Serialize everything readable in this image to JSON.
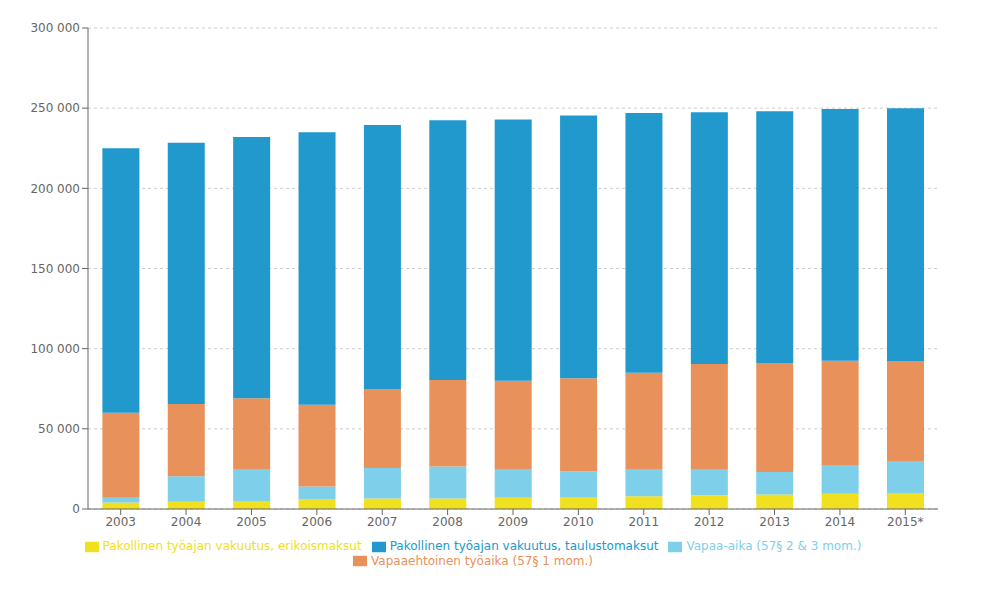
{
  "chart_data": {
    "type": "bar",
    "stacked": true,
    "grid": true,
    "legend": "bottom",
    "categories": [
      "2003",
      "2004",
      "2005",
      "2006",
      "2007",
      "2008",
      "2009",
      "2010",
      "2011",
      "2012",
      "2013",
      "2014",
      "2015*"
    ],
    "series": [
      {
        "name": "Pakollinen työajan vakuutus, erikoismaksut",
        "color": "#f0e020",
        "values": [
          4000,
          4500,
          5000,
          6000,
          6500,
          6500,
          7000,
          7500,
          8000,
          8500,
          9000,
          9500,
          10000
        ]
      },
      {
        "name": "Vapaa-aika (57§ 2 & 3 mom.)",
        "color": "#7dcfea",
        "values": [
          3000,
          16000,
          20000,
          8000,
          19000,
          20000,
          18000,
          16000,
          17000,
          16000,
          14000,
          18000,
          20000
        ]
      },
      {
        "name": "Vapaaehtoinen työaika (57§ 1 mom.)",
        "color": "#e8915a",
        "values": [
          53000,
          45000,
          44000,
          51000,
          49000,
          54000,
          55000,
          58000,
          60000,
          66000,
          68000,
          65000,
          62000
        ]
      },
      {
        "name": "Pakollinen työajan vakuutus, taulustomaksut",
        "color": "#2199cc",
        "values": [
          165000,
          163000,
          163000,
          170000,
          165000,
          162000,
          163000,
          164000,
          162000,
          157000,
          157000,
          157000,
          158000
        ]
      }
    ],
    "ylim": [
      0,
      300000
    ],
    "yticks": [
      0,
      {
        "value": 50000,
        "label": "50 000"
      },
      {
        "value": 100000,
        "label": "100 000"
      },
      {
        "value": 150000,
        "label": "150 000"
      },
      {
        "value": 200000,
        "label": "200 000"
      },
      {
        "value": 250000,
        "label": "250 000"
      },
      {
        "value": 300000,
        "label": "300 000"
      }
    ]
  }
}
